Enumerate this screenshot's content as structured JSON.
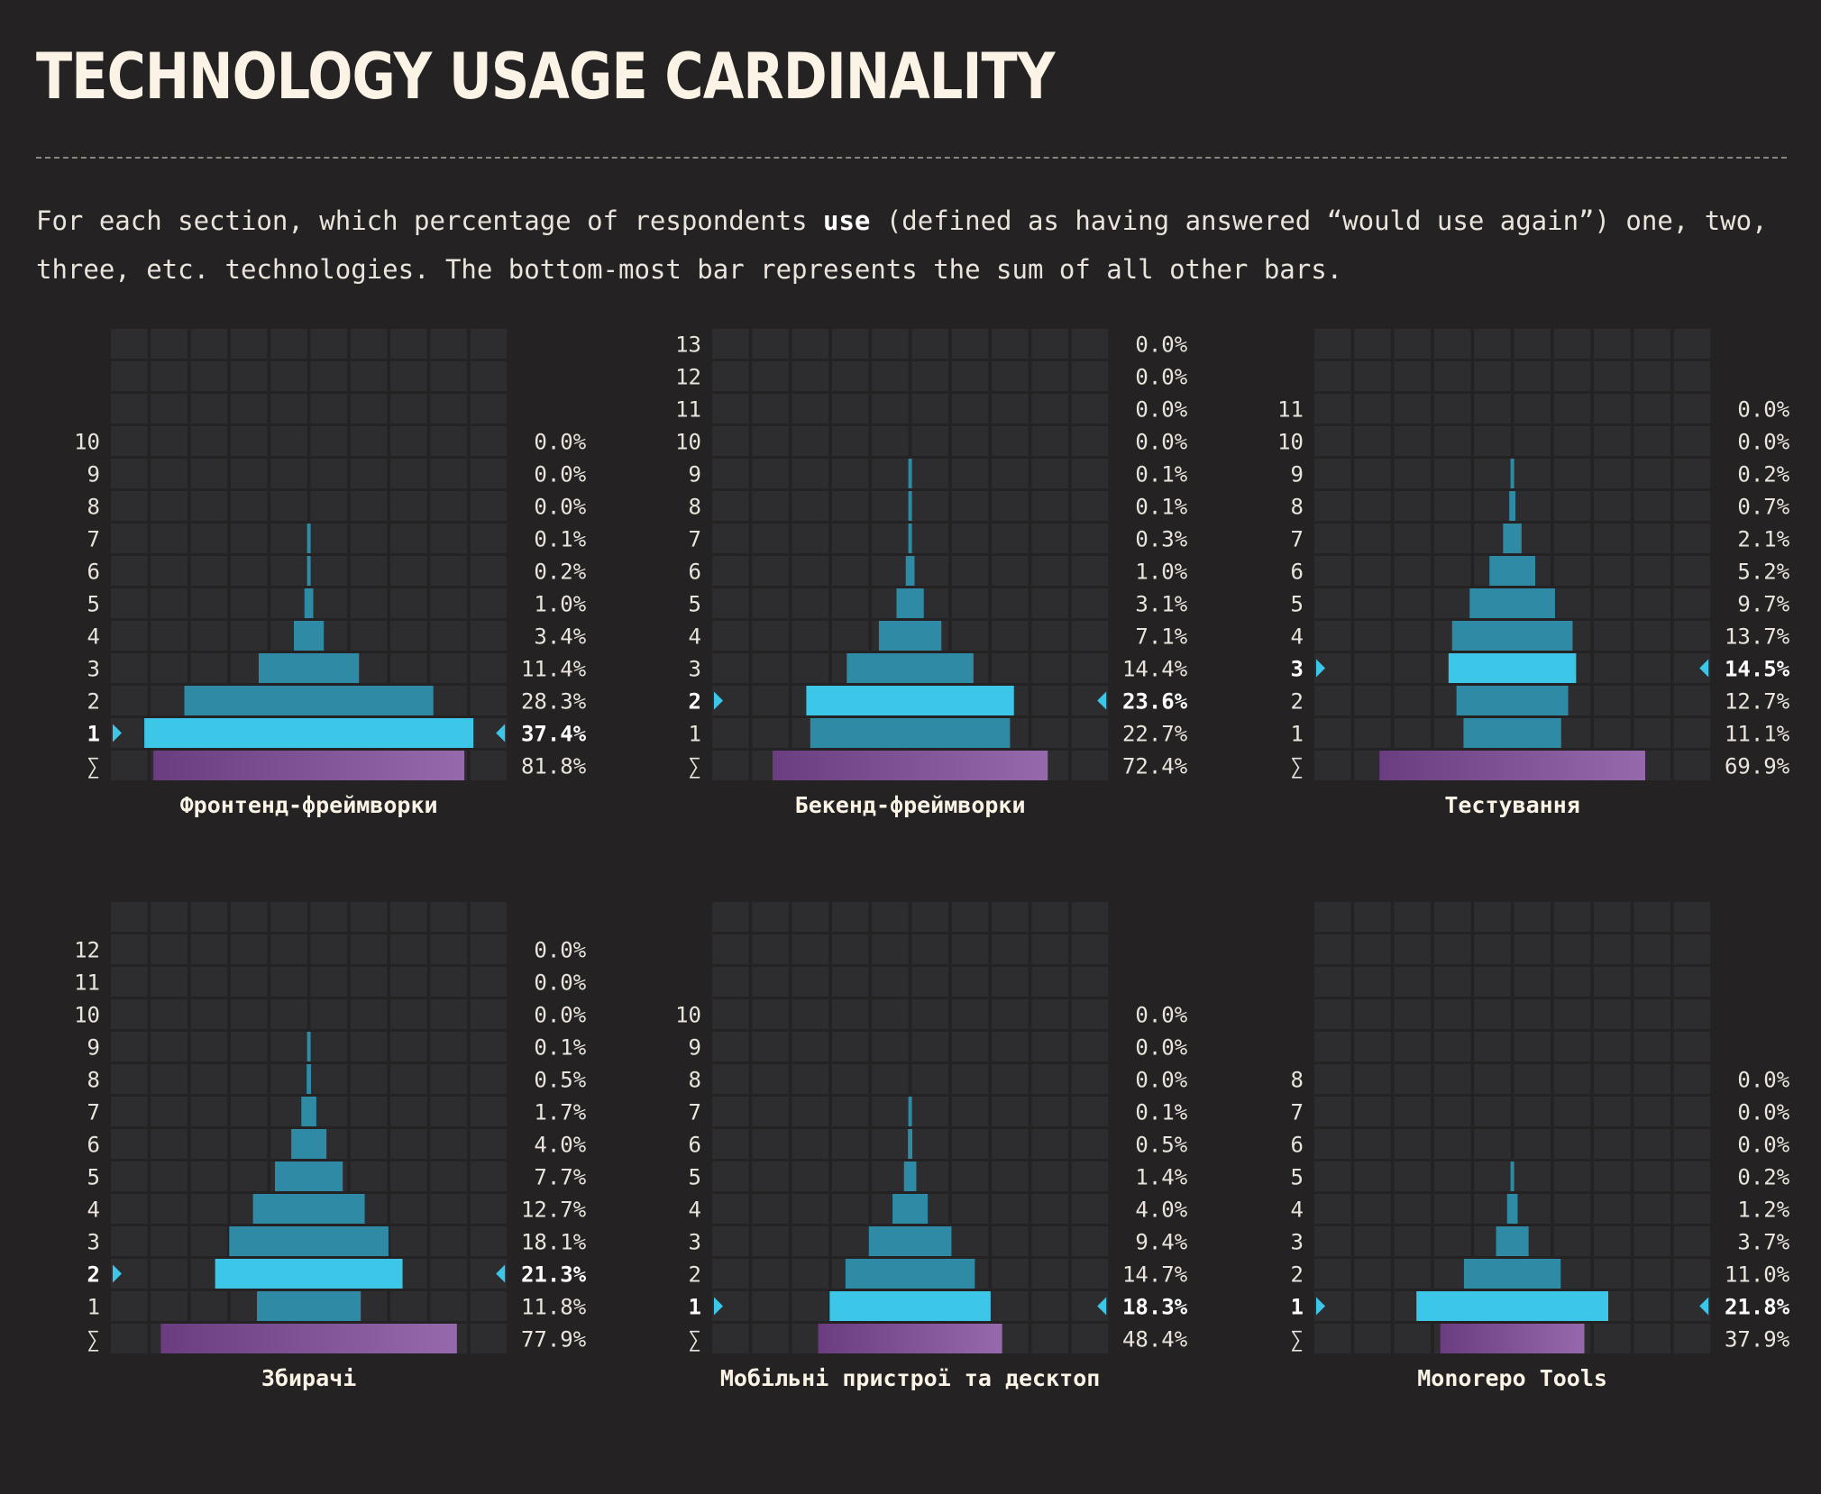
{
  "title": "TECHNOLOGY USAGE CARDINALITY",
  "description": {
    "before": "For each section, which percentage of respondents ",
    "emphasis": "use",
    "after": " (defined as having answered “would use again”) one, two, three, etc. technologies. The bottom-most bar represents the sum of all other bars."
  },
  "colors": {
    "background": "#242223",
    "cell": "#2d2d30",
    "bar_normal": "#2f8aa5",
    "bar_highlight": "#3cc6e8",
    "sum_bar_start": "#6a3d80",
    "sum_bar_end": "#9669ac",
    "label": "#eae4dc",
    "label_highlight": "#ffffff"
  },
  "sum_symbol": "∑",
  "chart_data": [
    {
      "type": "bar",
      "title": "Фронтенд-фреймворки",
      "grid_rows": 13,
      "categories": [
        "1",
        "2",
        "3",
        "4",
        "5",
        "6",
        "7",
        "8",
        "9",
        "10"
      ],
      "values": [
        37.4,
        28.3,
        11.4,
        3.4,
        1.0,
        0.2,
        0.1,
        0.0,
        0.0,
        0.0
      ],
      "labels": [
        "37.4%",
        "28.3%",
        "11.4%",
        "3.4%",
        "1.0%",
        "0.2%",
        "0.1%",
        "0.0%",
        "0.0%",
        "0.0%"
      ],
      "highlight": "1",
      "sum": {
        "value": 81.8,
        "label": "81.8%"
      }
    },
    {
      "type": "bar",
      "title": "Бекенд-фреймворки",
      "grid_rows": 13,
      "categories": [
        "1",
        "2",
        "3",
        "4",
        "5",
        "6",
        "7",
        "8",
        "9",
        "10",
        "11",
        "12",
        "13"
      ],
      "values": [
        22.7,
        23.6,
        14.4,
        7.1,
        3.1,
        1.0,
        0.3,
        0.1,
        0.1,
        0.0,
        0.0,
        0.0,
        0.0
      ],
      "labels": [
        "22.7%",
        "23.6%",
        "14.4%",
        "7.1%",
        "3.1%",
        "1.0%",
        "0.3%",
        "0.1%",
        "0.1%",
        "0.0%",
        "0.0%",
        "0.0%",
        "0.0%"
      ],
      "highlight": "2",
      "sum": {
        "value": 72.4,
        "label": "72.4%"
      }
    },
    {
      "type": "bar",
      "title": "Тестування",
      "grid_rows": 13,
      "categories": [
        "1",
        "2",
        "3",
        "4",
        "5",
        "6",
        "7",
        "8",
        "9",
        "10",
        "11"
      ],
      "values": [
        11.1,
        12.7,
        14.5,
        13.7,
        9.7,
        5.2,
        2.1,
        0.7,
        0.2,
        0.0,
        0.0
      ],
      "labels": [
        "11.1%",
        "12.7%",
        "14.5%",
        "13.7%",
        "9.7%",
        "5.2%",
        "2.1%",
        "0.7%",
        "0.2%",
        "0.0%",
        "0.0%"
      ],
      "highlight": "3",
      "sum": {
        "value": 69.9,
        "label": "69.9%"
      }
    },
    {
      "type": "bar",
      "title": "Збирачі",
      "grid_rows": 13,
      "categories": [
        "1",
        "2",
        "3",
        "4",
        "5",
        "6",
        "7",
        "8",
        "9",
        "10",
        "11",
        "12"
      ],
      "values": [
        11.8,
        21.3,
        18.1,
        12.7,
        7.7,
        4.0,
        1.7,
        0.5,
        0.1,
        0.0,
        0.0,
        0.0
      ],
      "labels": [
        "11.8%",
        "21.3%",
        "18.1%",
        "12.7%",
        "7.7%",
        "4.0%",
        "1.7%",
        "0.5%",
        "0.1%",
        "0.0%",
        "0.0%",
        "0.0%"
      ],
      "highlight": "2",
      "sum": {
        "value": 77.9,
        "label": "77.9%"
      }
    },
    {
      "type": "bar",
      "title": "Мобільні пристрої та десктоп",
      "grid_rows": 13,
      "categories": [
        "1",
        "2",
        "3",
        "4",
        "5",
        "6",
        "7",
        "8",
        "9",
        "10"
      ],
      "values": [
        18.3,
        14.7,
        9.4,
        4.0,
        1.4,
        0.5,
        0.1,
        0.0,
        0.0,
        0.0
      ],
      "labels": [
        "18.3%",
        "14.7%",
        "9.4%",
        "4.0%",
        "1.4%",
        "0.5%",
        "0.1%",
        "0.0%",
        "0.0%",
        "0.0%"
      ],
      "highlight": "1",
      "sum": {
        "value": 48.4,
        "label": "48.4%"
      }
    },
    {
      "type": "bar",
      "title": "Monorepo Tools",
      "grid_rows": 13,
      "categories": [
        "1",
        "2",
        "3",
        "4",
        "5",
        "6",
        "7",
        "8"
      ],
      "values": [
        21.8,
        11.0,
        3.7,
        1.2,
        0.2,
        0.0,
        0.0,
        0.0
      ],
      "labels": [
        "21.8%",
        "11.0%",
        "3.7%",
        "1.2%",
        "0.2%",
        "0.0%",
        "0.0%",
        "0.0%"
      ],
      "highlight": "1",
      "sum": {
        "value": 37.9,
        "label": "37.9%"
      }
    }
  ]
}
